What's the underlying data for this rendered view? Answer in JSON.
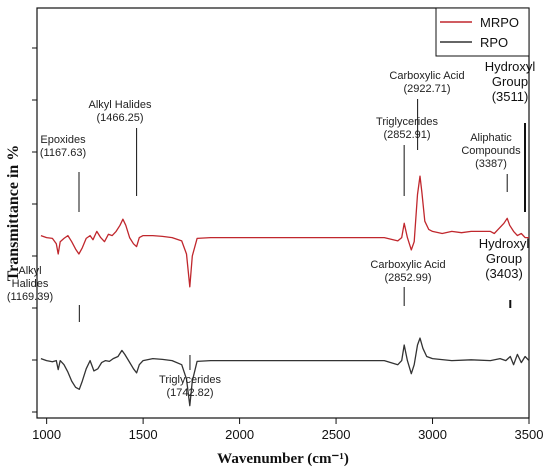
{
  "chart_data": {
    "type": "line",
    "title": "",
    "xlabel": "Wavenumber (cm⁻¹)",
    "ylabel": "Transmittance in %",
    "xlim": [
      950,
      3500
    ],
    "xticks": [
      1000,
      1500,
      2000,
      2500,
      3000,
      3500
    ],
    "xtick_labels": [
      "1000",
      "1500",
      "2000",
      "2500",
      "3000",
      "3500"
    ],
    "ylim": [
      0,
      1
    ],
    "legend_position": "top-right",
    "colors": {
      "MRPO": "#c0272d",
      "RPO": "#333333"
    },
    "series": [
      {
        "name": "MRPO",
        "points": [
          [
            970,
            0.445
          ],
          [
            1000,
            0.44
          ],
          [
            1030,
            0.438
          ],
          [
            1050,
            0.425
          ],
          [
            1060,
            0.4
          ],
          [
            1070,
            0.43
          ],
          [
            1090,
            0.438
          ],
          [
            1110,
            0.445
          ],
          [
            1130,
            0.43
          ],
          [
            1150,
            0.412
          ],
          [
            1167,
            0.4
          ],
          [
            1185,
            0.415
          ],
          [
            1205,
            0.438
          ],
          [
            1225,
            0.445
          ],
          [
            1240,
            0.435
          ],
          [
            1260,
            0.455
          ],
          [
            1280,
            0.44
          ],
          [
            1300,
            0.43
          ],
          [
            1320,
            0.448
          ],
          [
            1340,
            0.445
          ],
          [
            1360,
            0.455
          ],
          [
            1380,
            0.47
          ],
          [
            1395,
            0.485
          ],
          [
            1410,
            0.47
          ],
          [
            1430,
            0.44
          ],
          [
            1450,
            0.425
          ],
          [
            1466,
            0.418
          ],
          [
            1480,
            0.44
          ],
          [
            1500,
            0.445
          ],
          [
            1550,
            0.445
          ],
          [
            1600,
            0.443
          ],
          [
            1650,
            0.44
          ],
          [
            1700,
            0.432
          ],
          [
            1725,
            0.4
          ],
          [
            1742,
            0.32
          ],
          [
            1755,
            0.395
          ],
          [
            1780,
            0.438
          ],
          [
            1850,
            0.44
          ],
          [
            2000,
            0.44
          ],
          [
            2200,
            0.44
          ],
          [
            2400,
            0.44
          ],
          [
            2600,
            0.44
          ],
          [
            2750,
            0.44
          ],
          [
            2820,
            0.432
          ],
          [
            2840,
            0.44
          ],
          [
            2853,
            0.475
          ],
          [
            2870,
            0.44
          ],
          [
            2890,
            0.41
          ],
          [
            2905,
            0.43
          ],
          [
            2922,
            0.545
          ],
          [
            2935,
            0.59
          ],
          [
            2945,
            0.55
          ],
          [
            2960,
            0.48
          ],
          [
            2980,
            0.46
          ],
          [
            3000,
            0.455
          ],
          [
            3050,
            0.45
          ],
          [
            3100,
            0.455
          ],
          [
            3150,
            0.452
          ],
          [
            3200,
            0.455
          ],
          [
            3250,
            0.455
          ],
          [
            3300,
            0.455
          ],
          [
            3320,
            0.45
          ],
          [
            3340,
            0.46
          ],
          [
            3370,
            0.475
          ],
          [
            3387,
            0.487
          ],
          [
            3400,
            0.47
          ],
          [
            3420,
            0.455
          ],
          [
            3440,
            0.445
          ],
          [
            3460,
            0.45
          ],
          [
            3480,
            0.44
          ],
          [
            3500,
            0.44
          ]
        ]
      },
      {
        "name": "RPO",
        "points": [
          [
            970,
            0.145
          ],
          [
            1000,
            0.14
          ],
          [
            1030,
            0.137
          ],
          [
            1050,
            0.14
          ],
          [
            1060,
            0.118
          ],
          [
            1070,
            0.14
          ],
          [
            1090,
            0.13
          ],
          [
            1110,
            0.112
          ],
          [
            1130,
            0.09
          ],
          [
            1150,
            0.075
          ],
          [
            1169,
            0.07
          ],
          [
            1185,
            0.09
          ],
          [
            1205,
            0.12
          ],
          [
            1225,
            0.14
          ],
          [
            1245,
            0.115
          ],
          [
            1265,
            0.12
          ],
          [
            1285,
            0.135
          ],
          [
            1305,
            0.14
          ],
          [
            1325,
            0.138
          ],
          [
            1345,
            0.145
          ],
          [
            1370,
            0.15
          ],
          [
            1390,
            0.165
          ],
          [
            1405,
            0.155
          ],
          [
            1425,
            0.14
          ],
          [
            1450,
            0.12
          ],
          [
            1466,
            0.11
          ],
          [
            1480,
            0.13
          ],
          [
            1500,
            0.14
          ],
          [
            1550,
            0.145
          ],
          [
            1600,
            0.143
          ],
          [
            1650,
            0.14
          ],
          [
            1700,
            0.13
          ],
          [
            1725,
            0.095
          ],
          [
            1742,
            0.03
          ],
          [
            1755,
            0.09
          ],
          [
            1780,
            0.138
          ],
          [
            1850,
            0.14
          ],
          [
            2000,
            0.14
          ],
          [
            2200,
            0.14
          ],
          [
            2400,
            0.14
          ],
          [
            2600,
            0.14
          ],
          [
            2750,
            0.14
          ],
          [
            2820,
            0.13
          ],
          [
            2840,
            0.14
          ],
          [
            2853,
            0.178
          ],
          [
            2870,
            0.14
          ],
          [
            2890,
            0.108
          ],
          [
            2905,
            0.13
          ],
          [
            2922,
            0.178
          ],
          [
            2935,
            0.195
          ],
          [
            2950,
            0.17
          ],
          [
            2970,
            0.15
          ],
          [
            3000,
            0.145
          ],
          [
            3100,
            0.14
          ],
          [
            3200,
            0.142
          ],
          [
            3300,
            0.14
          ],
          [
            3350,
            0.145
          ],
          [
            3380,
            0.14
          ],
          [
            3403,
            0.15
          ],
          [
            3420,
            0.13
          ],
          [
            3440,
            0.155
          ],
          [
            3460,
            0.135
          ],
          [
            3480,
            0.15
          ],
          [
            3500,
            0.14
          ]
        ]
      }
    ],
    "annotations": [
      {
        "text": [
          "Epoxides",
          "(1167.63)"
        ],
        "series": "MRPO",
        "x": 1167.63,
        "style": "normal"
      },
      {
        "text": [
          "Alkyl Halides",
          "(1466.25)"
        ],
        "series": "MRPO",
        "x": 1466.25,
        "style": "normal"
      },
      {
        "text": [
          "Triglycerides",
          "(2852.91)"
        ],
        "series": "MRPO",
        "x": 2852.91,
        "style": "normal"
      },
      {
        "text": [
          "Carboxylic Acid",
          "(2922.71)"
        ],
        "series": "MRPO",
        "x": 2922.71,
        "style": "normal"
      },
      {
        "text": [
          "Aliphatic",
          "Compounds",
          "(3387)"
        ],
        "series": "MRPO",
        "x": 3387,
        "style": "normal"
      },
      {
        "text": [
          "Hydroxyl",
          "Group",
          "(3511)"
        ],
        "series": "MRPO",
        "x": 3511,
        "style": "big"
      },
      {
        "text": [
          "Alkyl",
          "Halides",
          "(1169.39)"
        ],
        "series": "RPO",
        "x": 1169.39,
        "style": "normal"
      },
      {
        "text": [
          "Triglycerides",
          "(1742.82)"
        ],
        "series": "RPO",
        "x": 1742.82,
        "style": "normal"
      },
      {
        "text": [
          "Carboxylic Acid",
          "(2852.99)"
        ],
        "series": "RPO",
        "x": 2852.99,
        "style": "normal"
      },
      {
        "text": [
          "Hydroxyl",
          "Group",
          "(3403)"
        ],
        "series": "RPO",
        "x": 3403,
        "style": "big"
      }
    ]
  }
}
